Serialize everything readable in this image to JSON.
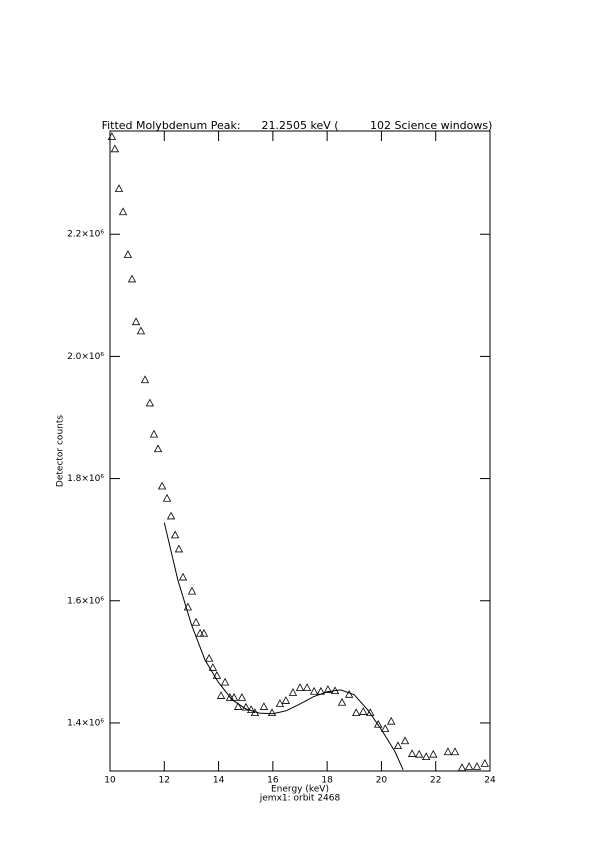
{
  "chart_data": {
    "type": "scatter",
    "title": "Fitted Molybdenum Peak:      21.2505 keV (         102 Science windows)",
    "x_label": "Energy (keV)",
    "subtitle": "jemx1: orbit 2468",
    "y_label": "Detector counts",
    "xlim": [
      10,
      24
    ],
    "xticks": [
      10,
      12,
      14,
      16,
      18,
      20,
      22,
      24
    ],
    "ylim": [
      1321300,
      2369000
    ],
    "yticks": [
      {
        "value": 1400000,
        "label": "1.4×10⁶"
      },
      {
        "value": 1600000,
        "label": "1.6×10⁶"
      },
      {
        "value": 1800000,
        "label": "1.8×10⁶"
      },
      {
        "value": 2000000,
        "label": "2.0×10⁶"
      },
      {
        "value": 2200000,
        "label": "2.2×10⁶"
      }
    ],
    "color": "#000000",
    "points": {
      "x": [
        10.07,
        10.18,
        10.33,
        10.48,
        10.66,
        10.81,
        10.96,
        11.14,
        11.29,
        11.47,
        11.62,
        11.77,
        11.92,
        12.1,
        12.25,
        12.4,
        12.54,
        12.69,
        12.87,
        13.02,
        13.17,
        13.32,
        13.46,
        13.65,
        13.79,
        13.94,
        14.09,
        14.24,
        14.42,
        14.57,
        14.72,
        14.86,
        15.01,
        15.2,
        15.34,
        15.67,
        15.97,
        16.26,
        16.48,
        16.74,
        17.0,
        17.26,
        17.52,
        17.77,
        18.03,
        18.29,
        18.55,
        18.81,
        19.07,
        19.33,
        19.59,
        19.88,
        20.14,
        20.36,
        20.61,
        20.87,
        21.13,
        21.39,
        21.65,
        21.91,
        22.45,
        22.71,
        22.97,
        23.23,
        23.52,
        23.81
      ],
      "y": [
        2359000,
        2339000,
        2274000,
        2236000,
        2166000,
        2126000,
        2056000,
        2041000,
        1961000,
        1923000,
        1872000,
        1848000,
        1787000,
        1767000,
        1738000,
        1707000,
        1684000,
        1638000,
        1589000,
        1615000,
        1564000,
        1546000,
        1546000,
        1505000,
        1490000,
        1477000,
        1444000,
        1466000,
        1441000,
        1441000,
        1426000,
        1441000,
        1425000,
        1421000,
        1416000,
        1426000,
        1416000,
        1431000,
        1436000,
        1449000,
        1457000,
        1457000,
        1451000,
        1451000,
        1454000,
        1452000,
        1433000,
        1446000,
        1416000,
        1418000,
        1416000,
        1397000,
        1390000,
        1402000,
        1362000,
        1370000,
        1349000,
        1348000,
        1344000,
        1348000,
        1352000,
        1352000,
        1326000,
        1328000,
        1328000,
        1333000
      ]
    },
    "fit": {
      "x": [
        12,
        12.5,
        13,
        13.5,
        14,
        14.5,
        15,
        15.5,
        16,
        16.5,
        17,
        17.5,
        18,
        18.5,
        19,
        19.5,
        20,
        20.5,
        20.8
      ],
      "y": [
        1728000,
        1634000,
        1561000,
        1503000,
        1466000,
        1438000,
        1423000,
        1416000,
        1415000,
        1420000,
        1431000,
        1443000,
        1451000,
        1454000,
        1446000,
        1421000,
        1389000,
        1353000,
        1323000
      ]
    }
  }
}
